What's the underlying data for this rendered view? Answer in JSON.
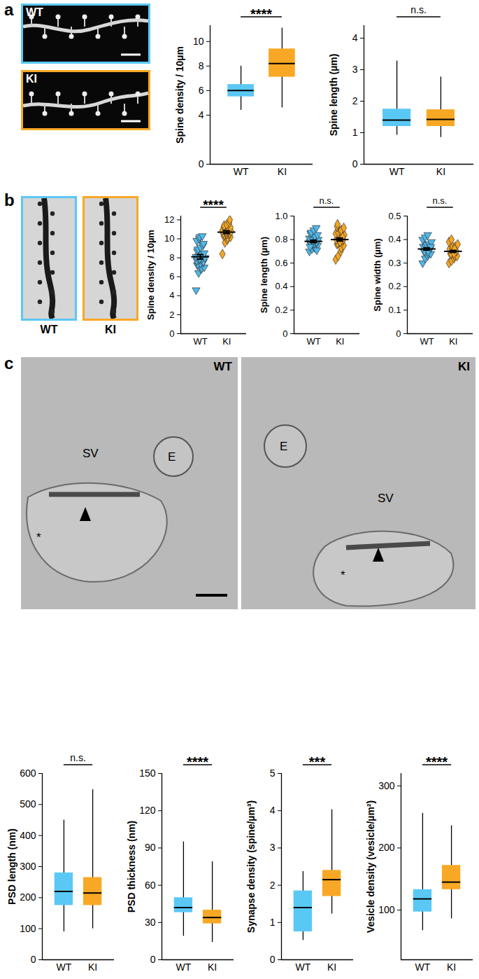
{
  "figure": {
    "panels": [
      {
        "label": "a",
        "images": [
          {
            "label": "WT",
            "color": "#5ac8f5"
          },
          {
            "label": "KI",
            "color": "#f9a825"
          }
        ]
      },
      {
        "label": "b",
        "images": [
          {
            "label": "WT",
            "color": "#5ac8f5"
          },
          {
            "label": "KI",
            "color": "#f9a825"
          }
        ]
      },
      {
        "label": "c",
        "images": [
          {
            "label": "WT",
            "annotations": [
              "SV",
              "E",
              "*"
            ]
          },
          {
            "label": "KI",
            "annotations": [
              "E",
              "SV",
              "*"
            ]
          }
        ]
      }
    ]
  },
  "chart_data": [
    {
      "type": "box",
      "y_label": "Spine density / 10µm",
      "categories": [
        "WT",
        "KI"
      ],
      "colors": [
        "#5ac8f5",
        "#f9a825"
      ],
      "boxes": [
        {
          "min": 4.4,
          "q1": 5.5,
          "median": 6.0,
          "q3": 6.5,
          "max": 8.0
        },
        {
          "min": 4.6,
          "q1": 7.1,
          "median": 8.2,
          "q3": 9.4,
          "max": 11.1
        }
      ],
      "annotation": "****",
      "ylim": [
        0,
        11.3
      ],
      "yticks": [
        0,
        4,
        6,
        8,
        10
      ]
    },
    {
      "type": "box",
      "y_label": "Spine length (µm)",
      "categories": [
        "WT",
        "KI"
      ],
      "colors": [
        "#5ac8f5",
        "#f9a825"
      ],
      "boxes": [
        {
          "min": 0.92,
          "q1": 1.2,
          "median": 1.4,
          "q3": 1.75,
          "max": 3.28
        },
        {
          "min": 0.85,
          "q1": 1.2,
          "median": 1.42,
          "q3": 1.73,
          "max": 2.77
        }
      ],
      "annotation": "n.s.",
      "ylim": [
        0,
        4.4
      ],
      "yticks": [
        0,
        1,
        2,
        3,
        4
      ]
    },
    {
      "type": "scatter",
      "y_label": "Spine density / 10µm",
      "series": [
        {
          "name": "WT",
          "color": "#4fb8ea",
          "marker": "triangle-down",
          "mean": 8.1,
          "sem": 0.24,
          "values": [
            4.6,
            6.4,
            6.8,
            6.9,
            7.0,
            7.2,
            7.3,
            7.4,
            7.5,
            7.6,
            7.7,
            7.8,
            7.9,
            8.0,
            8.0,
            8.1,
            8.2,
            8.3,
            8.4,
            8.5,
            8.7,
            8.9,
            9.1,
            9.3,
            9.5,
            9.8,
            10.0,
            10.2,
            10.3
          ]
        },
        {
          "name": "KI",
          "color": "#f5a623",
          "marker": "diamond",
          "mean": 10.7,
          "sem": 0.15,
          "values": [
            8.4,
            9.6,
            9.9,
            10.1,
            10.2,
            10.3,
            10.4,
            10.5,
            10.5,
            10.6,
            10.6,
            10.7,
            10.7,
            10.8,
            10.8,
            10.9,
            11.0,
            11.0,
            11.1,
            11.2,
            11.3,
            11.4,
            11.5,
            11.7,
            12.0
          ]
        }
      ],
      "annotation": "****",
      "ylim": [
        0,
        12.4
      ],
      "yticks": [
        0,
        2,
        4,
        6,
        8,
        10,
        12
      ]
    },
    {
      "type": "scatter",
      "y_label": "Spine length (µm)",
      "series": [
        {
          "name": "WT",
          "color": "#4fb8ea",
          "marker": "triangle-down",
          "mean": 0.785,
          "sem": 0.01,
          "values": [
            0.7,
            0.72,
            0.73,
            0.74,
            0.75,
            0.76,
            0.76,
            0.77,
            0.77,
            0.78,
            0.78,
            0.79,
            0.79,
            0.8,
            0.8,
            0.81,
            0.81,
            0.82,
            0.83,
            0.84,
            0.85,
            0.86,
            0.88,
            0.9,
            0.71,
            0.74
          ]
        },
        {
          "name": "KI",
          "color": "#f5a623",
          "marker": "diamond",
          "mean": 0.8,
          "sem": 0.013,
          "values": [
            0.63,
            0.66,
            0.7,
            0.73,
            0.75,
            0.76,
            0.77,
            0.78,
            0.79,
            0.8,
            0.8,
            0.81,
            0.82,
            0.83,
            0.84,
            0.85,
            0.86,
            0.87,
            0.88,
            0.9,
            0.91,
            0.93,
            0.78,
            0.82
          ]
        }
      ],
      "annotation": "n.s.",
      "ylim": [
        0,
        1
      ],
      "yticks": [
        0,
        0.2,
        0.4,
        0.6,
        0.8,
        {
          "value": 1,
          "label": "1.0"
        }
      ]
    },
    {
      "type": "scatter",
      "y_label": "Spine width (µm)",
      "series": [
        {
          "name": "WT",
          "color": "#4fb8ea",
          "marker": "triangle-down",
          "mean": 0.36,
          "sem": 0.005,
          "values": [
            0.3,
            0.32,
            0.33,
            0.34,
            0.34,
            0.35,
            0.35,
            0.36,
            0.36,
            0.36,
            0.37,
            0.37,
            0.38,
            0.38,
            0.39,
            0.4,
            0.41,
            0.42,
            0.35,
            0.37
          ]
        },
        {
          "name": "KI",
          "color": "#f5a623",
          "marker": "diamond",
          "mean": 0.35,
          "sem": 0.004,
          "values": [
            0.3,
            0.31,
            0.32,
            0.33,
            0.33,
            0.34,
            0.34,
            0.35,
            0.35,
            0.35,
            0.36,
            0.36,
            0.37,
            0.37,
            0.38,
            0.39,
            0.4,
            0.34,
            0.36
          ]
        }
      ],
      "annotation": "n.s.",
      "ylim": [
        0,
        0.5
      ],
      "yticks": [
        0,
        0.1,
        0.2,
        0.3,
        0.4,
        0.5
      ]
    },
    {
      "type": "box",
      "y_label": "PSD length (nm)",
      "categories": [
        "WT",
        "KI"
      ],
      "colors": [
        "#5ac8f5",
        "#f9a825"
      ],
      "boxes": [
        {
          "min": 90,
          "q1": 175,
          "median": 220,
          "q3": 280,
          "max": 450
        },
        {
          "min": 100,
          "q1": 175,
          "median": 215,
          "q3": 265,
          "max": 548
        }
      ],
      "annotation": "n.s.",
      "ylim": [
        0,
        600
      ],
      "yticks": [
        0,
        100,
        200,
        300,
        400,
        500,
        600
      ]
    },
    {
      "type": "box",
      "y_label": "PSD thickness (nm)",
      "categories": [
        "WT",
        "KI"
      ],
      "colors": [
        "#5ac8f5",
        "#f9a825"
      ],
      "boxes": [
        {
          "min": 19,
          "q1": 38,
          "median": 42,
          "q3": 50,
          "max": 95
        },
        {
          "min": 14,
          "q1": 29,
          "median": 34,
          "q3": 40,
          "max": 79
        }
      ],
      "annotation": "****",
      "ylim": [
        0,
        150
      ],
      "yticks": [
        0,
        30,
        60,
        90,
        120,
        150
      ]
    },
    {
      "type": "box",
      "y_label": "Synapse density (spine/µm³)",
      "categories": [
        "WT",
        "KI"
      ],
      "colors": [
        "#5ac8f5",
        "#f9a825"
      ],
      "boxes": [
        {
          "min": 0.52,
          "q1": 0.75,
          "median": 1.4,
          "q3": 1.85,
          "max": 2.37
        },
        {
          "min": 1.23,
          "q1": 1.7,
          "median": 2.15,
          "q3": 2.4,
          "max": 4.03
        }
      ],
      "annotation": "***",
      "ylim": [
        0,
        5
      ],
      "yticks": [
        0,
        1,
        2,
        3,
        4,
        5
      ]
    },
    {
      "type": "box",
      "y_label": "Vesicle density (vesicle/µm²)",
      "categories": [
        "WT",
        "KI"
      ],
      "colors": [
        "#5ac8f5",
        "#f9a825"
      ],
      "boxes": [
        {
          "min": 67,
          "q1": 97,
          "median": 118,
          "q3": 133,
          "max": 256
        },
        {
          "min": 86,
          "q1": 133,
          "median": 145,
          "q3": 172,
          "max": 236
        }
      ],
      "annotation": "****",
      "ylim": [
        20,
        320
      ],
      "yticks": [
        100,
        200,
        300
      ]
    }
  ]
}
